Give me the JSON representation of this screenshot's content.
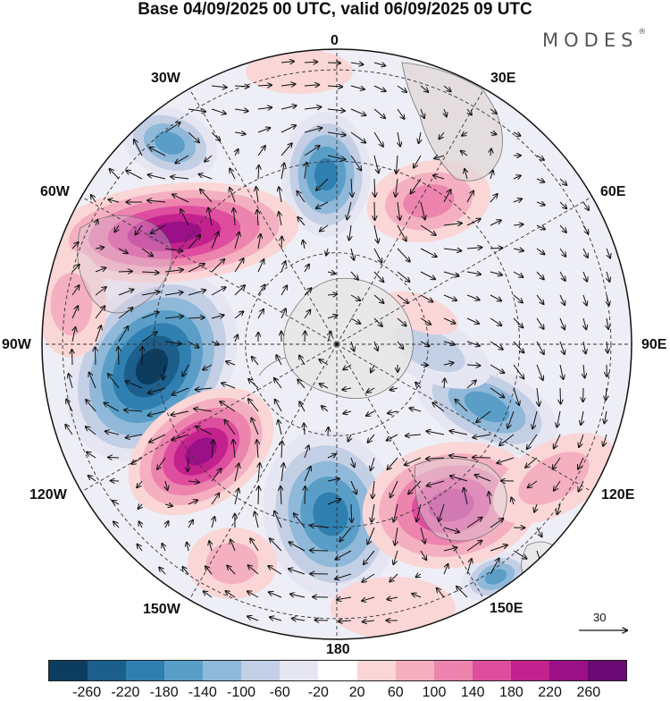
{
  "title": "Base 04/09/2025 00 UTC, valid 06/09/2025 09 UTC",
  "brand": "MODES",
  "brand_mark": "®",
  "longitude_labels": {
    "lon_0": "0",
    "lon_30e": "30E",
    "lon_60e": "60E",
    "lon_90e": "90E",
    "lon_120e": "120E",
    "lon_150e": "150E",
    "lon_180": "180",
    "lon_150w": "150W",
    "lon_120w": "120W",
    "lon_90w": "90W",
    "lon_60w": "60W",
    "lon_30w": "30W"
  },
  "wind_reference": {
    "value": "30"
  },
  "colorbar": {
    "colors": [
      "#0d3d5e",
      "#1c5f8c",
      "#2f7fb0",
      "#5a9ec8",
      "#8fb8d9",
      "#c3cfe4",
      "#e6e6f2",
      "#ffffff",
      "#fad6d6",
      "#f4b0c0",
      "#ec84ae",
      "#df4d9e",
      "#c3228e",
      "#9b1086",
      "#6a0a74"
    ],
    "ticks": [
      "-260",
      "-220",
      "-180",
      "-140",
      "-100",
      "-60",
      "-20",
      "20",
      "60",
      "100",
      "140",
      "180",
      "220",
      "260"
    ]
  },
  "colors": {
    "land": "#e9e9e9",
    "frame": "#111111"
  }
}
